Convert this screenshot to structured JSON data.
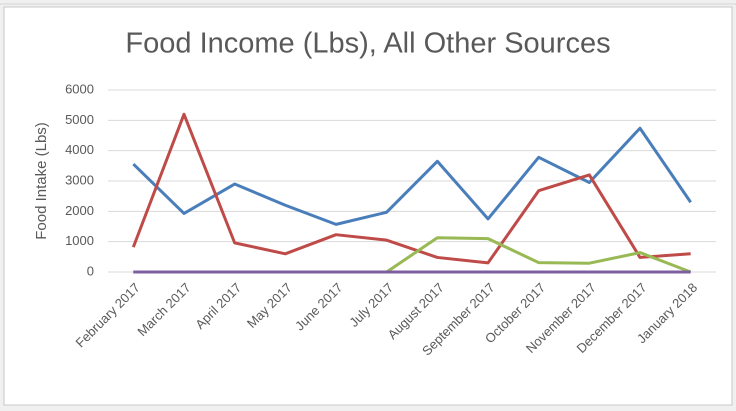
{
  "chart_data": {
    "type": "line",
    "title": "Food Income (Lbs), All Other Sources",
    "y_label": "Food Intake (Lbs)",
    "categories": [
      "February 2017",
      "March 2017",
      "April 2017",
      "May 2017",
      "June 2017",
      "July 2017",
      "August 2017",
      "September 2017",
      "October 2017",
      "November 2017",
      "December 2017",
      "January 2018"
    ],
    "series": [
      {
        "color": "#4a7ebb",
        "values": [
          3560,
          1930,
          2900,
          2200,
          1570,
          1970,
          3650,
          1750,
          3780,
          2950,
          4740,
          2300
        ]
      },
      {
        "color": "#be4b48",
        "values": [
          820,
          5200,
          960,
          600,
          1230,
          1050,
          480,
          300,
          2680,
          3200,
          480,
          600
        ]
      },
      {
        "color": "#98b954",
        "values": [
          0,
          0,
          0,
          0,
          0,
          0,
          1130,
          1100,
          310,
          290,
          640,
          0
        ]
      },
      {
        "color": "#7d5fa0",
        "values": [
          0,
          0,
          0,
          0,
          0,
          0,
          0,
          0,
          0,
          0,
          0,
          0
        ]
      }
    ],
    "ylim": [
      0,
      6000
    ],
    "yticks": [
      0,
      1000,
      2000,
      3000,
      4000,
      5000,
      6000
    ],
    "grid": true
  }
}
